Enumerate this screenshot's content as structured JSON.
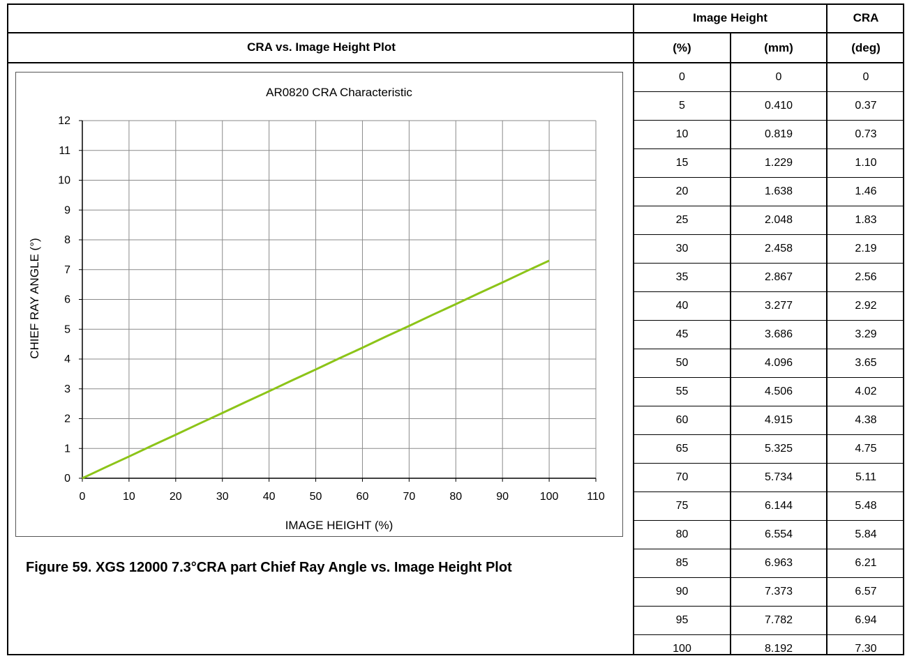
{
  "page": {
    "plot_header": "CRA vs. Image Height Plot",
    "caption": "Figure 59. XGS 12000 7.3°CRA part Chief Ray Angle vs. Image Height Plot"
  },
  "table": {
    "group_headers": {
      "image_height": "Image Height",
      "cra": "CRA"
    },
    "sub_headers": [
      "(%)",
      "(mm)",
      "(deg)"
    ],
    "rows": [
      [
        "0",
        "0",
        "0"
      ],
      [
        "5",
        "0.410",
        "0.37"
      ],
      [
        "10",
        "0.819",
        "0.73"
      ],
      [
        "15",
        "1.229",
        "1.10"
      ],
      [
        "20",
        "1.638",
        "1.46"
      ],
      [
        "25",
        "2.048",
        "1.83"
      ],
      [
        "30",
        "2.458",
        "2.19"
      ],
      [
        "35",
        "2.867",
        "2.56"
      ],
      [
        "40",
        "3.277",
        "2.92"
      ],
      [
        "45",
        "3.686",
        "3.29"
      ],
      [
        "50",
        "4.096",
        "3.65"
      ],
      [
        "55",
        "4.506",
        "4.02"
      ],
      [
        "60",
        "4.915",
        "4.38"
      ],
      [
        "65",
        "5.325",
        "4.75"
      ],
      [
        "70",
        "5.734",
        "5.11"
      ],
      [
        "75",
        "6.144",
        "5.48"
      ],
      [
        "80",
        "6.554",
        "5.84"
      ],
      [
        "85",
        "6.963",
        "6.21"
      ],
      [
        "90",
        "7.373",
        "6.57"
      ],
      [
        "95",
        "7.782",
        "6.94"
      ],
      [
        "100",
        "8.192",
        "7.30"
      ]
    ]
  },
  "chart_data": {
    "type": "line",
    "title": "AR0820 CRA Characteristic",
    "xlabel": "IMAGE HEIGHT (%)",
    "ylabel": "CHIEF RAY ANGLE (°)",
    "xlim": [
      0,
      110
    ],
    "ylim": [
      0,
      12
    ],
    "x_ticks": [
      0,
      10,
      20,
      30,
      40,
      50,
      60,
      70,
      80,
      90,
      100,
      110
    ],
    "y_ticks": [
      0,
      1,
      2,
      3,
      4,
      5,
      6,
      7,
      8,
      9,
      10,
      11,
      12
    ],
    "grid": true,
    "series_color": "#8cc418",
    "series": [
      {
        "x": [
          0,
          5,
          10,
          15,
          20,
          25,
          30,
          35,
          40,
          45,
          50,
          55,
          60,
          65,
          70,
          75,
          80,
          85,
          90,
          95,
          100
        ],
        "values": [
          0,
          0.37,
          0.73,
          1.1,
          1.46,
          1.83,
          2.19,
          2.56,
          2.92,
          3.29,
          3.65,
          4.02,
          4.38,
          4.75,
          5.11,
          5.48,
          5.84,
          6.21,
          6.57,
          6.94,
          7.3
        ]
      }
    ]
  }
}
